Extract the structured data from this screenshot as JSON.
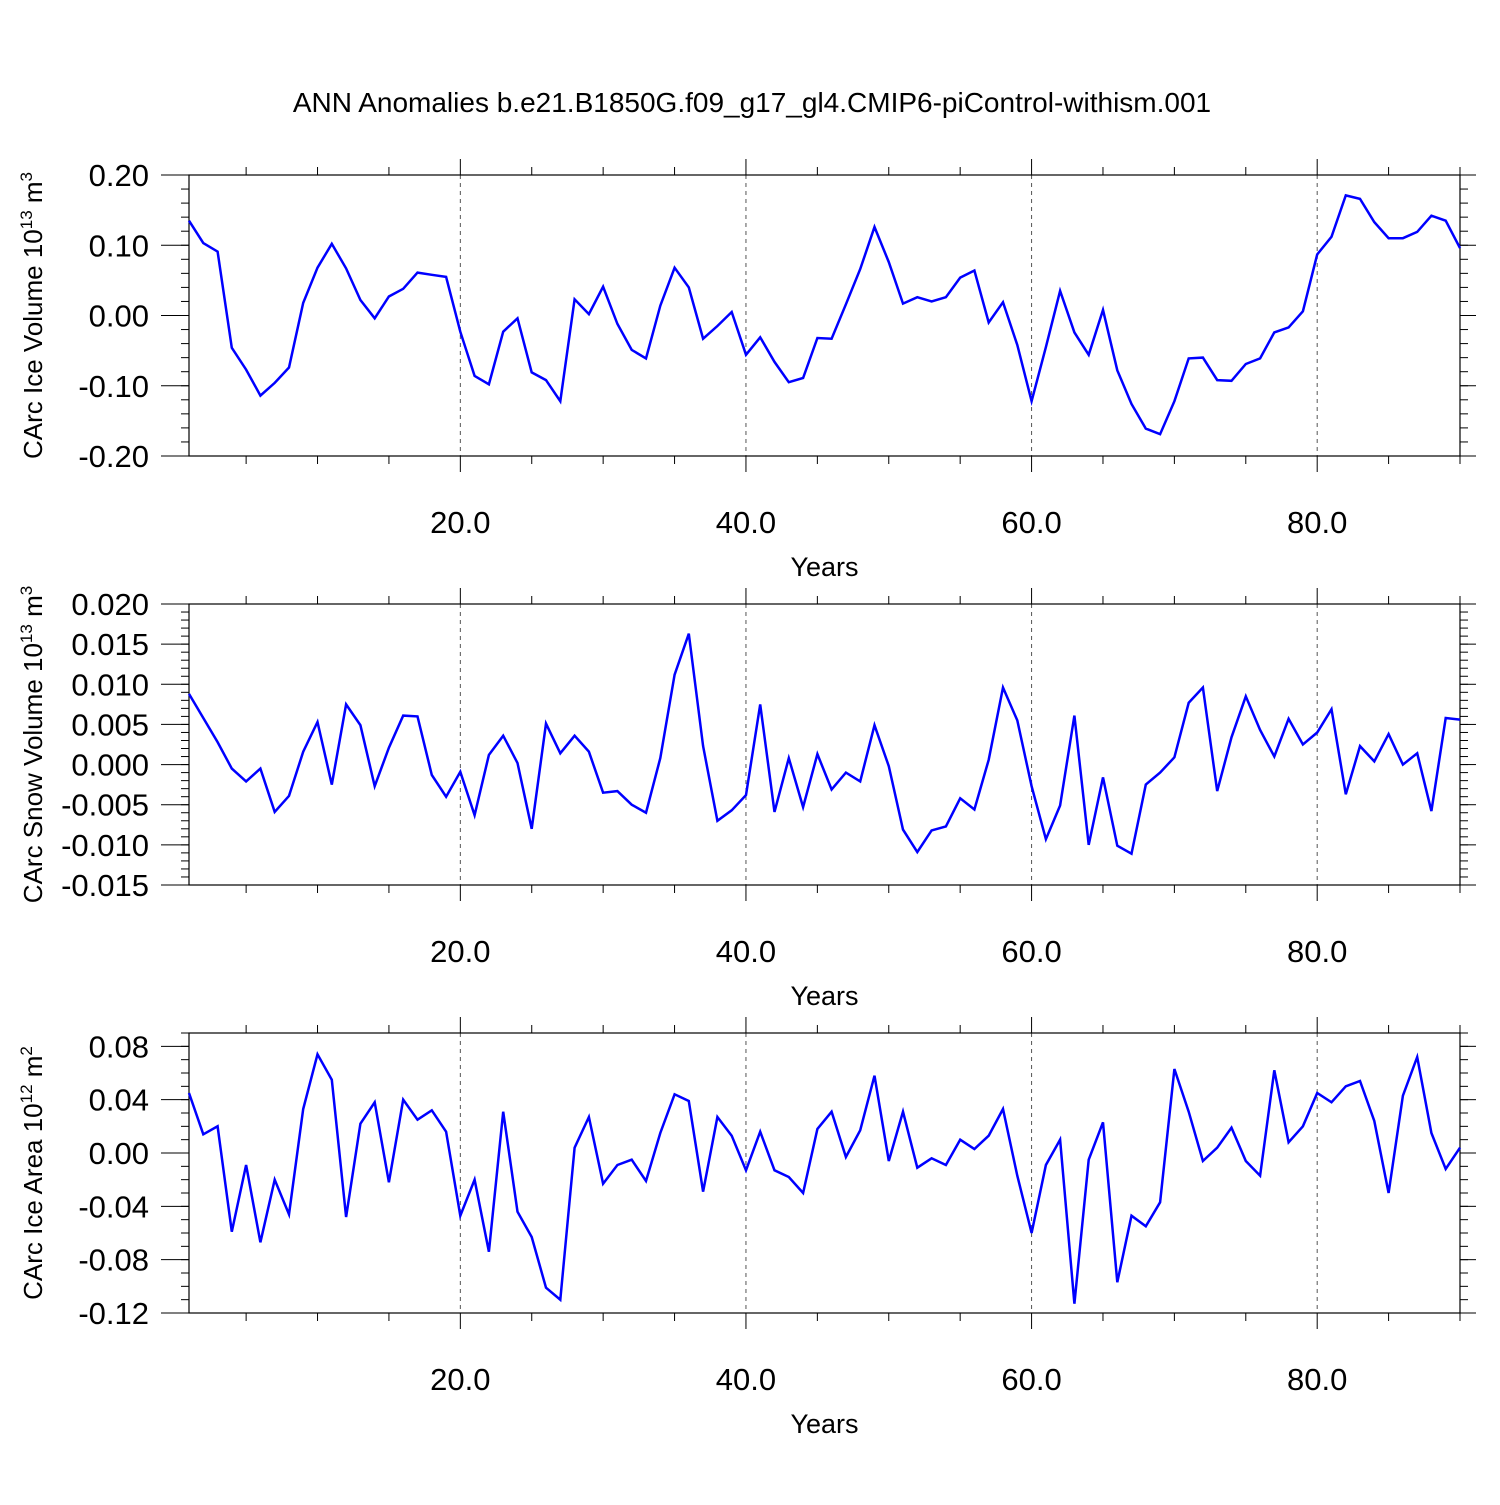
{
  "title": "ANN Anomalies b.e21.B1850G.f09_g17_gl4.CMIP6-piControl-withism.001",
  "line_color": "#0000ff",
  "chart_data": [
    {
      "type": "line",
      "ylabel": {
        "text": "CArc Ice Volume 10",
        "exp": "13",
        "unit": " m",
        "unit_exp": "3"
      },
      "xlabel": "Years",
      "xlim": [
        1,
        90
      ],
      "ylim": [
        -0.2,
        0.2
      ],
      "xticks": [
        20,
        40,
        60,
        80
      ],
      "xticklabels": [
        "20.0",
        "40.0",
        "60.0",
        "80.0"
      ],
      "yticks": [
        -0.2,
        -0.1,
        0.0,
        0.1,
        0.2
      ],
      "yticklabels": [
        "-0.20",
        "-0.10",
        "0.00",
        "0.10",
        "0.20"
      ],
      "yminor_step": 0.02,
      "grid": "vertical dashed at major x ticks",
      "series": [
        {
          "x": [
            1,
            2,
            3,
            4,
            5,
            6,
            7,
            8,
            9,
            10,
            11,
            12,
            13,
            14,
            15,
            16,
            17,
            18,
            19,
            20,
            21,
            22,
            23,
            24,
            25,
            26,
            27,
            28,
            29,
            30,
            31,
            32,
            33,
            34,
            35,
            36,
            37,
            38,
            39,
            40,
            41,
            42,
            43,
            44,
            45,
            46,
            47,
            48,
            49,
            50,
            51,
            52,
            53,
            54,
            55,
            56,
            57,
            58,
            59,
            60,
            61,
            62,
            63,
            64,
            65,
            66,
            67,
            68,
            69,
            70,
            71,
            72,
            73,
            74,
            75,
            76,
            77,
            78,
            79,
            80,
            81,
            82,
            83,
            84,
            85,
            86,
            87,
            88,
            89,
            90
          ],
          "values": [
            0.135,
            0.103,
            0.091,
            -0.046,
            -0.077,
            -0.114,
            -0.096,
            -0.074,
            0.018,
            0.068,
            0.102,
            0.067,
            0.022,
            -0.004,
            0.027,
            0.038,
            0.061,
            0.058,
            0.055,
            -0.023,
            -0.086,
            -0.098,
            -0.023,
            -0.004,
            -0.081,
            -0.092,
            -0.122,
            0.023,
            0.002,
            0.041,
            -0.012,
            -0.049,
            -0.061,
            0.014,
            0.068,
            0.04,
            -0.033,
            -0.015,
            0.005,
            -0.056,
            -0.031,
            -0.066,
            -0.095,
            -0.089,
            -0.032,
            -0.033,
            0.016,
            0.066,
            0.126,
            0.076,
            0.017,
            0.026,
            0.02,
            0.026,
            0.054,
            0.064,
            -0.01,
            0.019,
            -0.042,
            -0.122,
            -0.045,
            0.035,
            -0.024,
            -0.056,
            0.008,
            -0.078,
            -0.126,
            -0.161,
            -0.169,
            -0.122,
            -0.061,
            -0.06,
            -0.092,
            -0.093,
            -0.069,
            -0.061,
            -0.024,
            -0.017,
            0.006,
            0.087,
            0.112,
            0.171,
            0.166,
            0.133,
            0.11,
            0.11,
            0.119,
            0.142,
            0.135,
            0.096
          ]
        }
      ]
    },
    {
      "type": "line",
      "ylabel": {
        "text": "CArc Snow Volume 10",
        "exp": "13",
        "unit": " m",
        "unit_exp": "3"
      },
      "xlabel": "Years",
      "xlim": [
        1,
        90
      ],
      "ylim": [
        -0.015,
        0.02
      ],
      "xticks": [
        20,
        40,
        60,
        80
      ],
      "xticklabels": [
        "20.0",
        "40.0",
        "60.0",
        "80.0"
      ],
      "yticks": [
        -0.015,
        -0.01,
        -0.005,
        0.0,
        0.005,
        0.01,
        0.015,
        0.02
      ],
      "yticklabels": [
        "-0.015",
        "-0.010",
        "-0.005",
        "0.000",
        "0.005",
        "0.010",
        "0.015",
        "0.020"
      ],
      "yminor_step": 0.001,
      "grid": "vertical dashed at major x ticks",
      "series": [
        {
          "x": [
            1,
            2,
            3,
            4,
            5,
            6,
            7,
            8,
            9,
            10,
            11,
            12,
            13,
            14,
            15,
            16,
            17,
            18,
            19,
            20,
            21,
            22,
            23,
            24,
            25,
            26,
            27,
            28,
            29,
            30,
            31,
            32,
            33,
            34,
            35,
            36,
            37,
            38,
            39,
            40,
            41,
            42,
            43,
            44,
            45,
            46,
            47,
            48,
            49,
            50,
            51,
            52,
            53,
            54,
            55,
            56,
            57,
            58,
            59,
            60,
            61,
            62,
            63,
            64,
            65,
            66,
            67,
            68,
            69,
            70,
            71,
            72,
            73,
            74,
            75,
            76,
            77,
            78,
            79,
            80,
            81,
            82,
            83,
            84,
            85,
            86,
            87,
            88,
            89,
            90
          ],
          "values": [
            0.0088,
            0.0058,
            0.0028,
            -0.0005,
            -0.0021,
            -0.0005,
            -0.0059,
            -0.0039,
            0.0016,
            0.0053,
            -0.0025,
            0.0075,
            0.0049,
            -0.0027,
            0.0021,
            0.0061,
            0.006,
            -0.0013,
            -0.004,
            -0.0009,
            -0.0063,
            0.0012,
            0.0036,
            0.0002,
            -0.008,
            0.0051,
            0.0014,
            0.0036,
            0.0016,
            -0.0035,
            -0.0033,
            -0.005,
            -0.006,
            0.0008,
            0.0112,
            0.0163,
            0.0023,
            -0.007,
            -0.0057,
            -0.0038,
            0.0075,
            -0.0059,
            0.0008,
            -0.0053,
            0.0013,
            -0.0031,
            -0.001,
            -0.0021,
            0.0049,
            -0.0002,
            -0.0081,
            -0.0109,
            -0.0082,
            -0.0077,
            -0.0042,
            -0.0056,
            0.0006,
            0.0096,
            0.0055,
            -0.0027,
            -0.0093,
            -0.0051,
            0.0061,
            -0.01,
            -0.0016,
            -0.0101,
            -0.0111,
            -0.0025,
            -0.001,
            0.0009,
            0.0077,
            0.0096,
            -0.0033,
            0.0034,
            0.0085,
            0.0043,
            0.001,
            0.0057,
            0.0025,
            0.004,
            0.0069,
            -0.0037,
            0.0023,
            0.0004,
            0.0038,
            0.0,
            0.0014,
            -0.0058,
            0.0058,
            0.0056
          ]
        }
      ]
    },
    {
      "type": "line",
      "ylabel": {
        "text": "CArc Ice Area 10",
        "exp": "12",
        "unit": " m",
        "unit_exp": "2"
      },
      "xlabel": "Years",
      "xlim": [
        1,
        90
      ],
      "ylim": [
        -0.12,
        0.09
      ],
      "xticks": [
        20,
        40,
        60,
        80
      ],
      "xticklabels": [
        "20.0",
        "40.0",
        "60.0",
        "80.0"
      ],
      "yticks": [
        -0.12,
        -0.08,
        -0.04,
        0.0,
        0.04,
        0.08
      ],
      "yticklabels": [
        "-0.12",
        "-0.08",
        "-0.04",
        "0.00",
        "0.04",
        "0.08"
      ],
      "yminor_step": 0.01,
      "grid": "vertical dashed at major x ticks",
      "series": [
        {
          "x": [
            1,
            2,
            3,
            4,
            5,
            6,
            7,
            8,
            9,
            10,
            11,
            12,
            13,
            14,
            15,
            16,
            17,
            18,
            19,
            20,
            21,
            22,
            23,
            24,
            25,
            26,
            27,
            28,
            29,
            30,
            31,
            32,
            33,
            34,
            35,
            36,
            37,
            38,
            39,
            40,
            41,
            42,
            43,
            44,
            45,
            46,
            47,
            48,
            49,
            50,
            51,
            52,
            53,
            54,
            55,
            56,
            57,
            58,
            59,
            60,
            61,
            62,
            63,
            64,
            65,
            66,
            67,
            68,
            69,
            70,
            71,
            72,
            73,
            74,
            75,
            76,
            77,
            78,
            79,
            80,
            81,
            82,
            83,
            84,
            85,
            86,
            87,
            88,
            89,
            90
          ],
          "values": [
            0.045,
            0.014,
            0.02,
            -0.059,
            -0.009,
            -0.067,
            -0.02,
            -0.046,
            0.033,
            0.074,
            0.055,
            -0.048,
            0.022,
            0.038,
            -0.022,
            0.04,
            0.025,
            0.032,
            0.016,
            -0.047,
            -0.02,
            -0.074,
            0.031,
            -0.044,
            -0.063,
            -0.101,
            -0.11,
            0.004,
            0.027,
            -0.023,
            -0.009,
            -0.005,
            -0.021,
            0.015,
            0.044,
            0.039,
            -0.029,
            0.027,
            0.013,
            -0.013,
            0.016,
            -0.013,
            -0.018,
            -0.03,
            0.018,
            0.031,
            -0.003,
            0.017,
            0.058,
            -0.006,
            0.031,
            -0.011,
            -0.004,
            -0.009,
            0.01,
            0.003,
            0.013,
            0.033,
            -0.017,
            -0.06,
            -0.009,
            0.01,
            -0.113,
            -0.005,
            0.023,
            -0.097,
            -0.047,
            -0.055,
            -0.037,
            0.063,
            0.031,
            -0.006,
            0.004,
            0.019,
            -0.006,
            -0.017,
            0.062,
            0.008,
            0.02,
            0.045,
            0.038,
            0.05,
            0.054,
            0.024,
            -0.03,
            0.043,
            0.072,
            0.015,
            -0.012,
            0.004
          ]
        }
      ]
    }
  ]
}
